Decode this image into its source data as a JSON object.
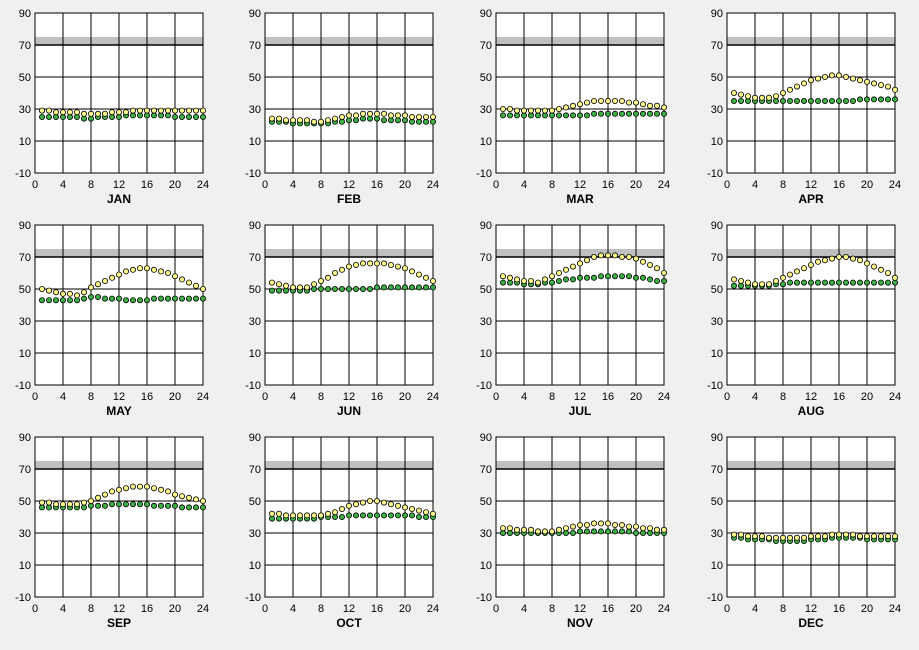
{
  "chart_data": [
    {
      "type": "scatter",
      "xlabel": "JAN",
      "xticks": [
        0,
        4,
        8,
        12,
        16,
        20,
        24
      ],
      "yticks": [
        -10,
        10,
        30,
        50,
        70,
        90
      ],
      "ylim": [
        -10,
        90
      ],
      "xlim": [
        0,
        24
      ],
      "band": [
        70,
        75
      ],
      "colors": {
        "series_1": "#fff88a",
        "series_2": "#3cb044"
      },
      "series": [
        {
          "name": "",
          "values": [
            29,
            29,
            28,
            28,
            28,
            28,
            27,
            27,
            27,
            27,
            28,
            28,
            28,
            29,
            29,
            29,
            29,
            29,
            29,
            29,
            29,
            29,
            29,
            29
          ]
        },
        {
          "name": "",
          "values": [
            25,
            25,
            25,
            25,
            25,
            25,
            24,
            24,
            25,
            25,
            25,
            25,
            26,
            26,
            26,
            26,
            26,
            26,
            26,
            25,
            25,
            25,
            25,
            25
          ]
        }
      ]
    },
    {
      "type": "scatter",
      "xlabel": "FEB",
      "xticks": [
        0,
        4,
        8,
        12,
        16,
        20,
        24
      ],
      "yticks": [
        -10,
        10,
        30,
        50,
        70,
        90
      ],
      "ylim": [
        -10,
        90
      ],
      "xlim": [
        0,
        24
      ],
      "band": [
        70,
        75
      ],
      "colors": {
        "series_1": "#fff88a",
        "series_2": "#3cb044"
      },
      "series": [
        {
          "name": "",
          "values": [
            24,
            24,
            23,
            23,
            23,
            23,
            22,
            22,
            23,
            24,
            25,
            26,
            26,
            27,
            27,
            27,
            27,
            26,
            26,
            26,
            25,
            25,
            25,
            25
          ]
        },
        {
          "name": "",
          "values": [
            22,
            22,
            22,
            21,
            21,
            21,
            21,
            21,
            21,
            22,
            22,
            23,
            23,
            24,
            24,
            24,
            23,
            23,
            23,
            23,
            22,
            22,
            22,
            22
          ]
        }
      ]
    },
    {
      "type": "scatter",
      "xlabel": "MAR",
      "xticks": [
        0,
        4,
        8,
        12,
        16,
        20,
        24
      ],
      "yticks": [
        -10,
        10,
        30,
        50,
        70,
        90
      ],
      "ylim": [
        -10,
        90
      ],
      "xlim": [
        0,
        24
      ],
      "band": [
        70,
        75
      ],
      "colors": {
        "series_1": "#fff88a",
        "series_2": "#3cb044"
      },
      "series": [
        {
          "name": "",
          "values": [
            30,
            30,
            29,
            29,
            29,
            29,
            29,
            29,
            30,
            31,
            32,
            33,
            34,
            35,
            35,
            35,
            35,
            35,
            34,
            34,
            33,
            32,
            32,
            31
          ]
        },
        {
          "name": "",
          "values": [
            26,
            26,
            26,
            26,
            26,
            26,
            26,
            26,
            26,
            26,
            26,
            26,
            26,
            27,
            27,
            27,
            27,
            27,
            27,
            27,
            27,
            27,
            27,
            27
          ]
        }
      ]
    },
    {
      "type": "scatter",
      "xlabel": "APR",
      "xticks": [
        0,
        4,
        8,
        12,
        16,
        20,
        24
      ],
      "yticks": [
        -10,
        10,
        30,
        50,
        70,
        90
      ],
      "ylim": [
        -10,
        90
      ],
      "xlim": [
        0,
        24
      ],
      "band": [
        70,
        75
      ],
      "colors": {
        "series_1": "#fff88a",
        "series_2": "#3cb044"
      },
      "series": [
        {
          "name": "",
          "values": [
            40,
            39,
            38,
            37,
            37,
            37,
            38,
            40,
            42,
            44,
            46,
            48,
            49,
            50,
            51,
            51,
            50,
            49,
            48,
            47,
            46,
            45,
            44,
            42
          ]
        },
        {
          "name": "",
          "values": [
            35,
            35,
            35,
            35,
            35,
            35,
            35,
            35,
            35,
            35,
            35,
            35,
            35,
            35,
            35,
            35,
            35,
            35,
            36,
            36,
            36,
            36,
            36,
            36
          ]
        }
      ]
    },
    {
      "type": "scatter",
      "xlabel": "MAY",
      "xticks": [
        0,
        4,
        8,
        12,
        16,
        20,
        24
      ],
      "yticks": [
        -10,
        10,
        30,
        50,
        70,
        90
      ],
      "ylim": [
        -10,
        90
      ],
      "xlim": [
        0,
        24
      ],
      "band": [
        70,
        75
      ],
      "colors": {
        "series_1": "#fff88a",
        "series_2": "#3cb044"
      },
      "series": [
        {
          "name": "",
          "values": [
            50,
            49,
            48,
            47,
            47,
            46,
            48,
            51,
            53,
            55,
            57,
            59,
            61,
            62,
            63,
            63,
            62,
            61,
            60,
            58,
            56,
            54,
            52,
            50
          ]
        },
        {
          "name": "",
          "values": [
            43,
            43,
            43,
            43,
            43,
            43,
            44,
            45,
            45,
            44,
            44,
            44,
            43,
            43,
            43,
            43,
            44,
            44,
            44,
            44,
            44,
            44,
            44,
            44
          ]
        }
      ]
    },
    {
      "type": "scatter",
      "xlabel": "JUN",
      "xticks": [
        0,
        4,
        8,
        12,
        16,
        20,
        24
      ],
      "yticks": [
        -10,
        10,
        30,
        50,
        70,
        90
      ],
      "ylim": [
        -10,
        90
      ],
      "xlim": [
        0,
        24
      ],
      "band": [
        70,
        75
      ],
      "colors": {
        "series_1": "#fff88a",
        "series_2": "#3cb044"
      },
      "series": [
        {
          "name": "",
          "values": [
            54,
            53,
            52,
            51,
            51,
            51,
            53,
            55,
            57,
            60,
            62,
            64,
            65,
            66,
            66,
            66,
            66,
            65,
            64,
            63,
            61,
            59,
            57,
            55
          ]
        },
        {
          "name": "",
          "values": [
            49,
            49,
            49,
            49,
            49,
            49,
            50,
            50,
            50,
            50,
            50,
            50,
            50,
            50,
            50,
            51,
            51,
            51,
            51,
            51,
            51,
            51,
            51,
            51
          ]
        }
      ]
    },
    {
      "type": "scatter",
      "xlabel": "JUL",
      "xticks": [
        0,
        4,
        8,
        12,
        16,
        20,
        24
      ],
      "yticks": [
        -10,
        10,
        30,
        50,
        70,
        90
      ],
      "ylim": [
        -10,
        90
      ],
      "xlim": [
        0,
        24
      ],
      "band": [
        70,
        75
      ],
      "colors": {
        "series_1": "#fff88a",
        "series_2": "#3cb044"
      },
      "series": [
        {
          "name": "",
          "values": [
            58,
            57,
            56,
            55,
            55,
            54,
            56,
            58,
            60,
            62,
            64,
            66,
            68,
            70,
            71,
            71,
            71,
            70,
            70,
            69,
            67,
            65,
            63,
            60
          ]
        },
        {
          "name": "",
          "values": [
            54,
            54,
            54,
            53,
            53,
            53,
            54,
            54,
            55,
            56,
            56,
            57,
            57,
            57,
            58,
            58,
            58,
            58,
            58,
            57,
            57,
            56,
            55,
            55
          ]
        }
      ]
    },
    {
      "type": "scatter",
      "xlabel": "AUG",
      "xticks": [
        0,
        4,
        8,
        12,
        16,
        20,
        24
      ],
      "yticks": [
        -10,
        10,
        30,
        50,
        70,
        90
      ],
      "ylim": [
        -10,
        90
      ],
      "xlim": [
        0,
        24
      ],
      "band": [
        70,
        75
      ],
      "colors": {
        "series_1": "#fff88a",
        "series_2": "#3cb044"
      },
      "series": [
        {
          "name": "",
          "values": [
            56,
            55,
            54,
            53,
            53,
            53,
            55,
            57,
            59,
            61,
            63,
            65,
            67,
            68,
            69,
            70,
            70,
            69,
            68,
            66,
            64,
            62,
            60,
            57
          ]
        },
        {
          "name": "",
          "values": [
            52,
            52,
            52,
            52,
            52,
            52,
            53,
            53,
            54,
            54,
            54,
            54,
            54,
            54,
            54,
            54,
            54,
            54,
            54,
            54,
            54,
            54,
            54,
            54
          ]
        }
      ]
    },
    {
      "type": "scatter",
      "xlabel": "SEP",
      "xticks": [
        0,
        4,
        8,
        12,
        16,
        20,
        24
      ],
      "yticks": [
        -10,
        10,
        30,
        50,
        70,
        90
      ],
      "ylim": [
        -10,
        90
      ],
      "xlim": [
        0,
        24
      ],
      "band": [
        70,
        75
      ],
      "colors": {
        "series_1": "#fff88a",
        "series_2": "#3cb044"
      },
      "series": [
        {
          "name": "",
          "values": [
            49,
            49,
            48,
            48,
            48,
            48,
            49,
            50,
            52,
            54,
            56,
            57,
            58,
            59,
            59,
            59,
            58,
            57,
            56,
            54,
            53,
            52,
            51,
            50
          ]
        },
        {
          "name": "",
          "values": [
            46,
            46,
            46,
            46,
            46,
            46,
            46,
            47,
            47,
            47,
            48,
            48,
            48,
            48,
            48,
            48,
            47,
            47,
            47,
            47,
            46,
            46,
            46,
            46
          ]
        }
      ]
    },
    {
      "type": "scatter",
      "xlabel": "OCT",
      "xticks": [
        0,
        4,
        8,
        12,
        16,
        20,
        24
      ],
      "yticks": [
        -10,
        10,
        30,
        50,
        70,
        90
      ],
      "ylim": [
        -10,
        90
      ],
      "xlim": [
        0,
        24
      ],
      "band": [
        70,
        75
      ],
      "colors": {
        "series_1": "#fff88a",
        "series_2": "#3cb044"
      },
      "series": [
        {
          "name": "",
          "values": [
            42,
            42,
            41,
            41,
            41,
            41,
            41,
            41,
            42,
            43,
            45,
            47,
            48,
            49,
            50,
            50,
            49,
            48,
            47,
            46,
            45,
            44,
            43,
            42
          ]
        },
        {
          "name": "",
          "values": [
            39,
            39,
            39,
            39,
            39,
            39,
            39,
            40,
            40,
            40,
            40,
            41,
            41,
            41,
            41,
            41,
            41,
            41,
            41,
            41,
            41,
            40,
            40,
            40
          ]
        }
      ]
    },
    {
      "type": "scatter",
      "xlabel": "NOV",
      "xticks": [
        0,
        4,
        8,
        12,
        16,
        20,
        24
      ],
      "yticks": [
        -10,
        10,
        30,
        50,
        70,
        90
      ],
      "ylim": [
        -10,
        90
      ],
      "xlim": [
        0,
        24
      ],
      "band": [
        70,
        75
      ],
      "colors": {
        "series_1": "#fff88a",
        "series_2": "#3cb044"
      },
      "series": [
        {
          "name": "",
          "values": [
            33,
            33,
            32,
            32,
            32,
            31,
            31,
            31,
            32,
            33,
            34,
            35,
            35,
            36,
            36,
            36,
            35,
            35,
            34,
            34,
            33,
            33,
            32,
            32
          ]
        },
        {
          "name": "",
          "values": [
            30,
            30,
            30,
            30,
            30,
            30,
            30,
            30,
            30,
            30,
            30,
            31,
            31,
            31,
            31,
            31,
            31,
            31,
            31,
            30,
            30,
            30,
            30,
            30
          ]
        }
      ]
    },
    {
      "type": "scatter",
      "xlabel": "DEC",
      "xticks": [
        0,
        4,
        8,
        12,
        16,
        20,
        24
      ],
      "yticks": [
        -10,
        10,
        30,
        50,
        70,
        90
      ],
      "ylim": [
        -10,
        90
      ],
      "xlim": [
        0,
        24
      ],
      "band": [
        70,
        75
      ],
      "colors": {
        "series_1": "#fff88a",
        "series_2": "#3cb044"
      },
      "series": [
        {
          "name": "",
          "values": [
            29,
            29,
            28,
            28,
            28,
            27,
            27,
            27,
            27,
            27,
            27,
            28,
            28,
            28,
            29,
            29,
            29,
            29,
            28,
            28,
            28,
            28,
            28,
            28
          ]
        },
        {
          "name": "",
          "values": [
            27,
            27,
            26,
            26,
            26,
            26,
            25,
            25,
            25,
            25,
            25,
            26,
            26,
            26,
            27,
            27,
            27,
            27,
            27,
            26,
            26,
            26,
            26,
            26
          ]
        }
      ]
    }
  ]
}
